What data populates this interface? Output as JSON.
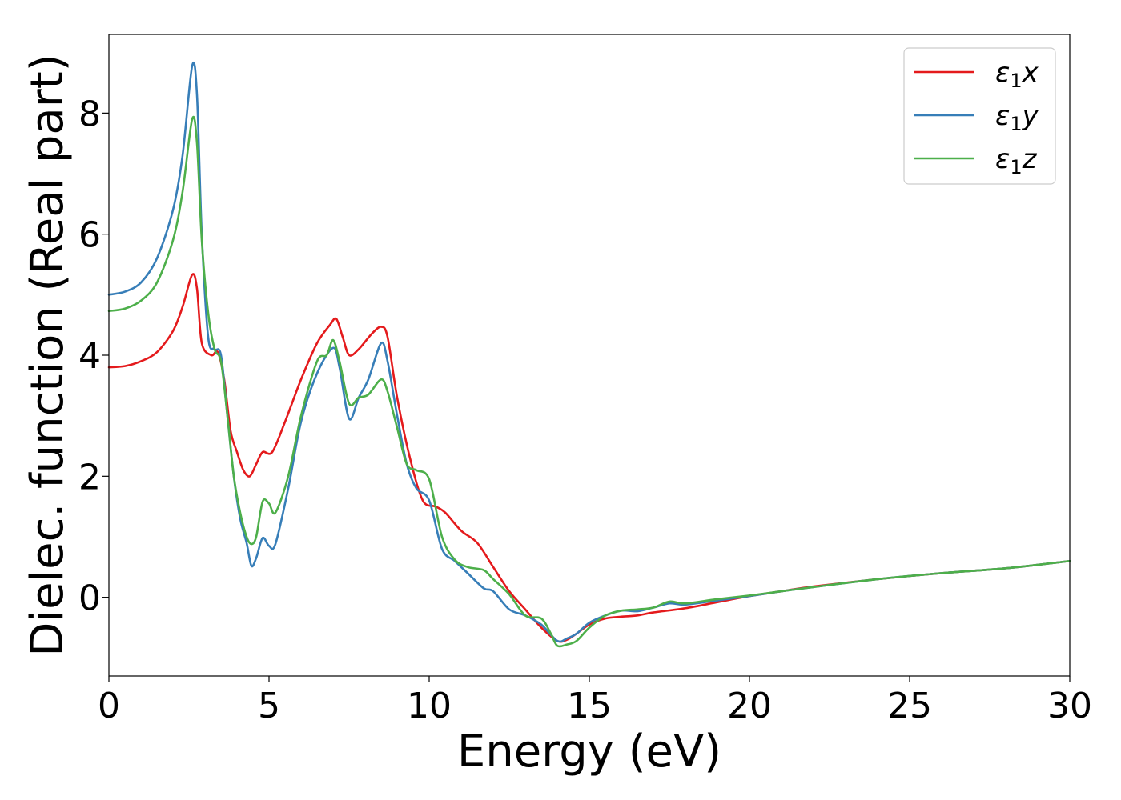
{
  "chart_data": {
    "type": "line",
    "title": "",
    "xlabel": "Energy (eV)",
    "ylabel": "Dielec. function (Real part)",
    "xlim": [
      0,
      30
    ],
    "ylim": [
      -1.3,
      9.3
    ],
    "xticks": [
      0,
      5,
      10,
      15,
      20,
      25,
      30
    ],
    "yticks": [
      0,
      2,
      4,
      6,
      8
    ],
    "grid": false,
    "legend_position": "top-right",
    "series": [
      {
        "name": "ε₁x",
        "legend": {
          "base": "ε",
          "sub": "1",
          "var": "x"
        },
        "color": "#e41a1c",
        "x": [
          0,
          0.5,
          1.0,
          1.5,
          2.0,
          2.3,
          2.6,
          2.75,
          2.9,
          3.2,
          3.4,
          3.6,
          3.8,
          4.0,
          4.2,
          4.4,
          4.6,
          4.8,
          5.1,
          5.5,
          6.0,
          6.5,
          6.9,
          7.1,
          7.3,
          7.5,
          7.8,
          8.2,
          8.5,
          8.7,
          9.0,
          9.4,
          9.8,
          10.2,
          10.5,
          11.0,
          11.5,
          12.0,
          12.5,
          13.0,
          13.5,
          14.0,
          14.3,
          14.6,
          15.0,
          15.5,
          16.0,
          16.5,
          17.0,
          18.0,
          19.0,
          20.0,
          21.0,
          22.0,
          24.0,
          26.0,
          28.0,
          30.0
        ],
        "y": [
          3.8,
          3.82,
          3.9,
          4.05,
          4.4,
          4.8,
          5.33,
          5.1,
          4.2,
          4.0,
          4.05,
          3.6,
          2.75,
          2.4,
          2.1,
          2.0,
          2.2,
          2.4,
          2.4,
          2.9,
          3.6,
          4.2,
          4.5,
          4.6,
          4.3,
          4.0,
          4.1,
          4.35,
          4.47,
          4.3,
          3.3,
          2.3,
          1.6,
          1.5,
          1.4,
          1.1,
          0.9,
          0.5,
          0.1,
          -0.2,
          -0.5,
          -0.72,
          -0.7,
          -0.6,
          -0.45,
          -0.35,
          -0.32,
          -0.3,
          -0.25,
          -0.18,
          -0.08,
          0.02,
          0.1,
          0.18,
          0.3,
          0.4,
          0.48,
          0.6
        ]
      },
      {
        "name": "ε₁y",
        "legend": {
          "base": "ε",
          "sub": "1",
          "var": "y"
        },
        "color": "#377eb8",
        "x": [
          0,
          0.5,
          1.0,
          1.5,
          2.0,
          2.3,
          2.6,
          2.75,
          2.9,
          3.1,
          3.3,
          3.5,
          3.7,
          3.9,
          4.1,
          4.3,
          4.45,
          4.6,
          4.8,
          5.0,
          5.2,
          5.6,
          6.0,
          6.5,
          7.0,
          7.2,
          7.5,
          7.8,
          8.1,
          8.5,
          8.7,
          9.0,
          9.3,
          9.6,
          10.0,
          10.4,
          10.8,
          11.2,
          11.7,
          12.0,
          12.5,
          13.0,
          13.5,
          14.0,
          14.3,
          14.6,
          15.0,
          15.5,
          16.0,
          16.5,
          17.0,
          17.5,
          18.0,
          19.0,
          20.0,
          21.0,
          22.0,
          24.0,
          26.0,
          28.0,
          30.0
        ],
        "y": [
          5.0,
          5.05,
          5.2,
          5.6,
          6.4,
          7.3,
          8.78,
          8.3,
          6.0,
          4.3,
          4.1,
          4.0,
          3.0,
          2.0,
          1.3,
          0.9,
          0.52,
          0.65,
          0.98,
          0.85,
          0.88,
          1.8,
          2.9,
          3.7,
          4.12,
          3.8,
          2.95,
          3.3,
          3.6,
          4.2,
          3.9,
          3.0,
          2.2,
          1.8,
          1.6,
          0.8,
          0.6,
          0.4,
          0.15,
          0.1,
          -0.2,
          -0.3,
          -0.45,
          -0.72,
          -0.68,
          -0.6,
          -0.42,
          -0.3,
          -0.22,
          -0.23,
          -0.17,
          -0.1,
          -0.12,
          -0.05,
          0.02,
          0.1,
          0.17,
          0.3,
          0.4,
          0.48,
          0.6
        ]
      },
      {
        "name": "ε₁z",
        "legend": {
          "base": "ε",
          "sub": "1",
          "var": "z"
        },
        "color": "#4daf4a",
        "x": [
          0,
          0.5,
          1.0,
          1.5,
          2.0,
          2.3,
          2.6,
          2.75,
          2.9,
          3.1,
          3.3,
          3.5,
          3.7,
          3.9,
          4.1,
          4.3,
          4.45,
          4.6,
          4.8,
          5.0,
          5.2,
          5.6,
          6.0,
          6.5,
          6.8,
          7.0,
          7.2,
          7.5,
          7.8,
          8.1,
          8.5,
          8.7,
          9.0,
          9.3,
          9.6,
          10.0,
          10.4,
          10.8,
          11.2,
          11.7,
          12.0,
          12.5,
          13.0,
          13.5,
          13.8,
          14.0,
          14.3,
          14.6,
          15.0,
          15.5,
          16.0,
          16.5,
          17.0,
          17.5,
          18.0,
          19.0,
          20.0,
          21.0,
          22.0,
          24.0,
          26.0,
          28.0,
          30.0
        ],
        "y": [
          4.73,
          4.77,
          4.9,
          5.2,
          5.9,
          6.7,
          7.9,
          7.5,
          5.9,
          4.7,
          4.1,
          3.9,
          3.0,
          2.0,
          1.4,
          1.0,
          0.88,
          1.0,
          1.58,
          1.55,
          1.4,
          2.0,
          3.0,
          3.9,
          4.0,
          4.25,
          3.9,
          3.2,
          3.3,
          3.35,
          3.6,
          3.4,
          2.8,
          2.2,
          2.1,
          1.95,
          1.0,
          0.62,
          0.5,
          0.45,
          0.3,
          0.05,
          -0.3,
          -0.35,
          -0.6,
          -0.8,
          -0.78,
          -0.72,
          -0.5,
          -0.3,
          -0.22,
          -0.2,
          -0.17,
          -0.07,
          -0.1,
          -0.03,
          0.03,
          0.1,
          0.17,
          0.3,
          0.4,
          0.48,
          0.6
        ]
      }
    ]
  }
}
